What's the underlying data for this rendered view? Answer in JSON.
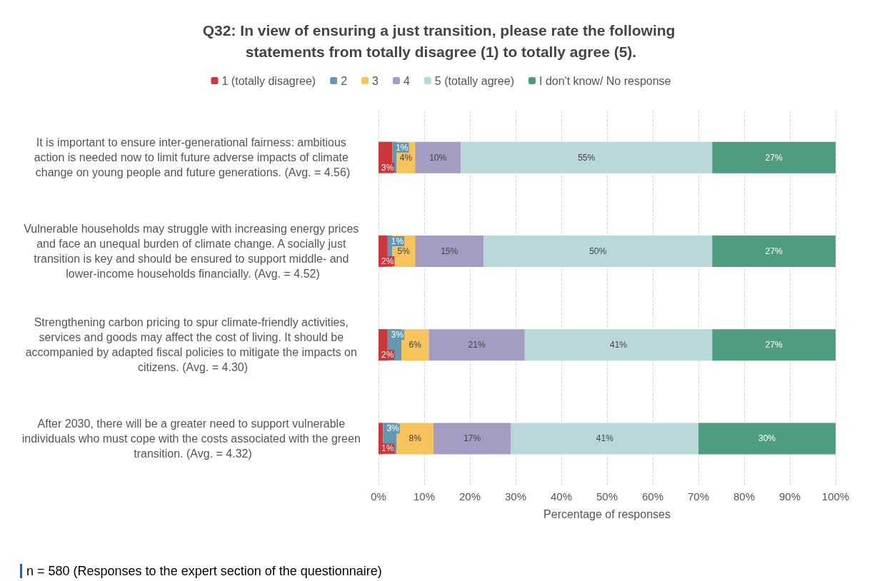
{
  "chart_data": {
    "type": "bar",
    "orientation": "horizontal",
    "stacked": true,
    "title": "Q32: In view of ensuring a just transition, please rate the following statements from totally disagree (1) to totally agree (5).",
    "xlabel": "Percentage of responses",
    "categories": [
      "It is important to ensure inter-generational fairness: ambitious action is needed now to limit future adverse impacts of climate change on young people and future generations. (Avg. = 4.56)",
      "Vulnerable households may struggle with increasing energy prices and face an unequal burden of climate change. A socially just transition is key and should be ensured to support middle- and lower-income households financially. (Avg. = 4.52)",
      "Strengthening carbon pricing to spur climate-friendly activities, services and goods may affect the cost of living. It should be accompanied by adapted fiscal policies to mitigate the impacts on citizens. (Avg. = 4.30)",
      "After 2030, there will be a greater need to support vulnerable individuals who must cope with the costs associated with the green transition. (Avg. = 4.32)"
    ],
    "series": [
      {
        "name": "1 (totally disagree)",
        "color": "#c9393b",
        "values": [
          3,
          2,
          2,
          1
        ],
        "value_labels": [
          "3%",
          "2%",
          "2%",
          "1%"
        ]
      },
      {
        "name": "2",
        "color": "#6598b0",
        "values": [
          1,
          1,
          3,
          3
        ],
        "value_labels": [
          "1%",
          "1%",
          "3%",
          "3%"
        ]
      },
      {
        "name": "3",
        "color": "#f7c35c",
        "values": [
          4,
          5,
          6,
          8
        ],
        "value_labels": [
          "4%",
          "5%",
          "6%",
          "8%"
        ]
      },
      {
        "name": "4",
        "color": "#a59dc1",
        "values": [
          10,
          15,
          21,
          17
        ],
        "value_labels": [
          "10%",
          "15%",
          "21%",
          "17%"
        ]
      },
      {
        "name": "5 (totally agree)",
        "color": "#bad8da",
        "values": [
          55,
          50,
          41,
          41
        ],
        "value_labels": [
          "55%",
          "50%",
          "41%",
          "41%"
        ]
      },
      {
        "name": "I don't know/ No response",
        "color": "#4e9d7e",
        "values": [
          27,
          27,
          27,
          30
        ],
        "value_labels": [
          "27%",
          "27%",
          "27%",
          "30%"
        ]
      }
    ],
    "xlim": [
      0,
      100
    ],
    "xticks": [
      {
        "value": 0,
        "label": "0%"
      },
      {
        "value": 10,
        "label": "10%"
      },
      {
        "value": 20,
        "label": "20%"
      },
      {
        "value": 30,
        "label": "30%"
      },
      {
        "value": 40,
        "label": "40%"
      },
      {
        "value": 50,
        "label": "50%"
      },
      {
        "value": 60,
        "label": "60%"
      },
      {
        "value": 70,
        "label": "70%"
      },
      {
        "value": 80,
        "label": "80%"
      },
      {
        "value": 90,
        "label": "90%"
      },
      {
        "value": 100,
        "label": "100%"
      }
    ],
    "grid": "x",
    "legend": "top",
    "annotations": [
      "n = 580 (Responses to the expert section of the questionnaire)"
    ]
  }
}
